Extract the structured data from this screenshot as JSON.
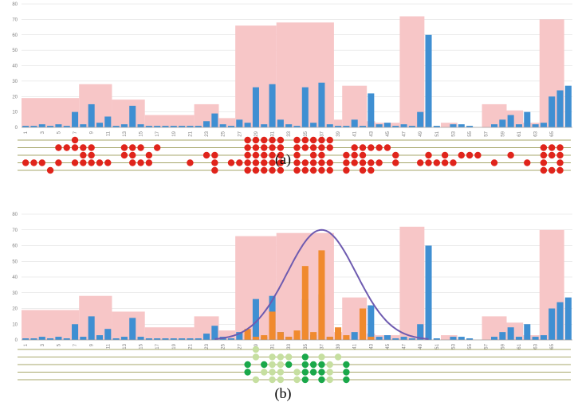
{
  "colors": {
    "envelope": "#f7c6c7",
    "bar": "#3f8fd2",
    "highlight": "#f08a2e",
    "curve": "#6e5bb0",
    "grid": "#d9d9d9",
    "line": "#8a8a3a",
    "dot_red": "#e0241b",
    "dot_dark_green": "#1aa84a",
    "dot_light_green": "#c6dfa0"
  },
  "chart_data": [
    {
      "type": "bar",
      "panel": "a",
      "caption": "(a)",
      "ylim": [
        0,
        80
      ],
      "y_ticks": [
        "0",
        "10",
        "20",
        "30",
        "40",
        "50",
        "60",
        "70",
        "80"
      ],
      "x_tick_labels": [
        "1",
        "3",
        "5",
        "7",
        "9",
        "11",
        "13",
        "15",
        "17",
        "19",
        "21",
        "23",
        "25",
        "27",
        "29",
        "31",
        "33",
        "35",
        "37",
        "39",
        "41",
        "43",
        "45",
        "47",
        "49",
        "51",
        "53",
        "55",
        "57",
        "59",
        "61",
        "63",
        "65"
      ],
      "envelope": [
        {
          "x0": 1,
          "x1": 8,
          "value": 19
        },
        {
          "x0": 8,
          "x1": 12,
          "value": 28
        },
        {
          "x0": 12,
          "x1": 16,
          "value": 18
        },
        {
          "x0": 16,
          "x1": 22,
          "value": 8
        },
        {
          "x0": 22,
          "x1": 25,
          "value": 15
        },
        {
          "x0": 25,
          "x1": 27,
          "value": 6
        },
        {
          "x0": 27,
          "x1": 32,
          "value": 66
        },
        {
          "x0": 32,
          "x1": 39,
          "value": 68
        },
        {
          "x0": 39,
          "x1": 40,
          "value": 5
        },
        {
          "x0": 40,
          "x1": 43,
          "value": 27
        },
        {
          "x0": 43,
          "x1": 44,
          "value": 4
        },
        {
          "x0": 44,
          "x1": 47,
          "value": 3
        },
        {
          "x0": 47,
          "x1": 50,
          "value": 72
        },
        {
          "x0": 52,
          "x1": 54,
          "value": 3
        },
        {
          "x0": 57,
          "x1": 60,
          "value": 15
        },
        {
          "x0": 60,
          "x1": 62,
          "value": 11
        },
        {
          "x0": 62,
          "x1": 64,
          "value": 3
        },
        {
          "x0": 64,
          "x1": 67,
          "value": 70
        }
      ],
      "values": [
        1,
        1,
        2,
        1,
        2,
        1,
        10,
        2,
        15,
        3,
        7,
        1,
        2,
        14,
        2,
        1,
        1,
        1,
        1,
        1,
        1,
        1,
        4,
        9,
        2,
        1,
        5,
        3,
        26,
        2,
        28,
        5,
        2,
        1,
        26,
        3,
        29,
        2,
        1,
        1,
        5,
        1,
        22,
        2,
        3,
        1,
        2,
        1,
        10,
        60,
        1,
        0,
        2,
        2,
        1,
        0,
        0,
        2,
        5,
        8,
        2,
        10,
        2,
        3,
        20,
        24,
        27
      ],
      "dot_rows": 5
    },
    {
      "type": "bar",
      "panel": "b",
      "caption": "(b)",
      "ylim": [
        0,
        80
      ],
      "y_ticks": [
        "0",
        "10",
        "20",
        "30",
        "40",
        "50",
        "60",
        "70",
        "80"
      ],
      "x_tick_labels": [
        "1",
        "3",
        "5",
        "7",
        "9",
        "11",
        "13",
        "15",
        "17",
        "19",
        "21",
        "23",
        "25",
        "27",
        "29",
        "31",
        "33",
        "35",
        "37",
        "39",
        "41",
        "43",
        "45",
        "47",
        "49",
        "51",
        "53",
        "55",
        "57",
        "59",
        "61",
        "63",
        "65"
      ],
      "envelope": [
        {
          "x0": 1,
          "x1": 8,
          "value": 19
        },
        {
          "x0": 8,
          "x1": 12,
          "value": 28
        },
        {
          "x0": 12,
          "x1": 16,
          "value": 18
        },
        {
          "x0": 16,
          "x1": 22,
          "value": 8
        },
        {
          "x0": 22,
          "x1": 25,
          "value": 15
        },
        {
          "x0": 25,
          "x1": 27,
          "value": 6
        },
        {
          "x0": 27,
          "x1": 32,
          "value": 66
        },
        {
          "x0": 32,
          "x1": 39,
          "value": 68
        },
        {
          "x0": 39,
          "x1": 40,
          "value": 5
        },
        {
          "x0": 40,
          "x1": 43,
          "value": 27
        },
        {
          "x0": 43,
          "x1": 44,
          "value": 4
        },
        {
          "x0": 44,
          "x1": 47,
          "value": 3
        },
        {
          "x0": 47,
          "x1": 50,
          "value": 72
        },
        {
          "x0": 52,
          "x1": 54,
          "value": 3
        },
        {
          "x0": 57,
          "x1": 60,
          "value": 15
        },
        {
          "x0": 60,
          "x1": 62,
          "value": 11
        },
        {
          "x0": 62,
          "x1": 64,
          "value": 3
        },
        {
          "x0": 64,
          "x1": 67,
          "value": 70
        }
      ],
      "values": [
        1,
        1,
        2,
        1,
        2,
        1,
        10,
        2,
        15,
        3,
        7,
        1,
        2,
        14,
        2,
        1,
        1,
        1,
        1,
        1,
        1,
        1,
        4,
        9,
        2,
        1,
        5,
        3,
        26,
        2,
        28,
        5,
        2,
        1,
        26,
        3,
        29,
        2,
        1,
        1,
        5,
        1,
        22,
        2,
        3,
        1,
        2,
        1,
        10,
        60,
        1,
        0,
        2,
        2,
        1,
        0,
        0,
        2,
        5,
        8,
        2,
        10,
        2,
        3,
        20,
        24,
        27
      ],
      "highlight_values": {
        "28": 7,
        "29": 2,
        "30": 3,
        "31": 18,
        "32": 5,
        "33": 2,
        "34": 6,
        "35": 47,
        "36": 5,
        "37": 57,
        "38": 2,
        "39": 8,
        "40": 3,
        "42": 20,
        "43": 2
      },
      "gaussian": {
        "mean": 37,
        "sd": 4.2,
        "peak": 70
      },
      "dot_rows": 5
    }
  ]
}
